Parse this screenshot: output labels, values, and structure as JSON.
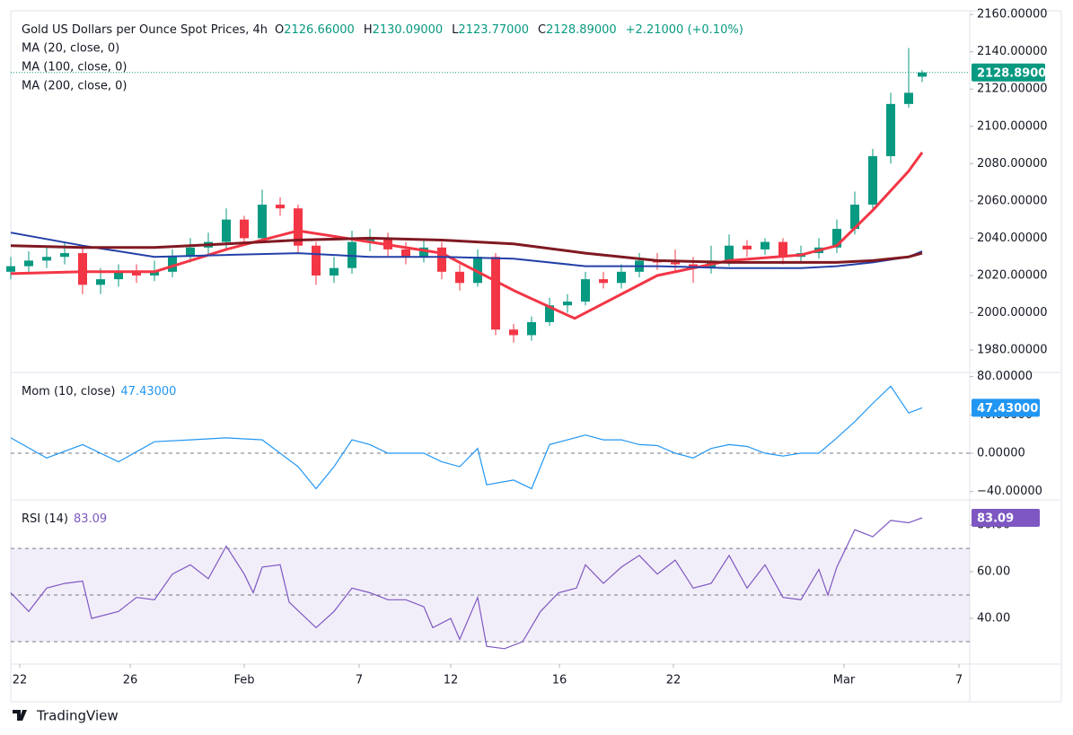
{
  "chart_data": [
    {
      "type": "candlestick",
      "title": "Gold US Dollars per Ounce Spot Prices, 4h",
      "ohlc_legend": [
        {
          "prefix": "O",
          "text": "2126.66000"
        },
        {
          "prefix": "H",
          "text": "2130.09000"
        },
        {
          "prefix": "L",
          "text": "2123.77000"
        },
        {
          "prefix": "C",
          "text": "2128.89000"
        }
      ],
      "change": "+2.21000 (+0.10%)",
      "last_price_label": "2128.89000",
      "up_color": "#089981",
      "down_color": "#f23645",
      "x": [
        0,
        2,
        4,
        6,
        8,
        10,
        12,
        14,
        16,
        18,
        20,
        22,
        24,
        26,
        28,
        30,
        32,
        34,
        36,
        38,
        40,
        42,
        44,
        46,
        48,
        50,
        52,
        54,
        56,
        58,
        60,
        62,
        64,
        66,
        68,
        70,
        72,
        74,
        76,
        78,
        80,
        82,
        84,
        86,
        88,
        90,
        92,
        94,
        96,
        98,
        100,
        101.5
      ],
      "open": [
        2022,
        2025,
        2028,
        2030,
        2032,
        2015,
        2018,
        2022,
        2020,
        2022,
        2030,
        2035,
        2038,
        2050,
        2040,
        2058,
        2056,
        2036,
        2020,
        2024,
        2038,
        2040,
        2034,
        2030,
        2035,
        2022,
        2016,
        2030,
        1991,
        1988,
        1995,
        2004,
        2006,
        2018,
        2016,
        2022,
        2028,
        2027,
        2026,
        2024,
        2028,
        2036,
        2034,
        2038,
        2030,
        2032,
        2035,
        2045,
        2058,
        2084,
        2112,
        2126.66
      ],
      "high": [
        2030,
        2033,
        2036,
        2038,
        2035,
        2024,
        2026,
        2026,
        2028,
        2034,
        2040,
        2043,
        2056,
        2052,
        2066,
        2062,
        2058,
        2038,
        2030,
        2044,
        2045,
        2043,
        2038,
        2040,
        2038,
        2026,
        2034,
        2032,
        1994,
        1998,
        2008,
        2010,
        2022,
        2022,
        2026,
        2032,
        2032,
        2034,
        2030,
        2036,
        2042,
        2039,
        2040,
        2040,
        2036,
        2040,
        2050,
        2065,
        2088,
        2118,
        2142,
        2130.09
      ],
      "low": [
        2018,
        2021,
        2024,
        2026,
        2010,
        2010,
        2014,
        2016,
        2017,
        2019,
        2027,
        2031,
        2034,
        2036,
        2038,
        2052,
        2032,
        2015,
        2016,
        2021,
        2033,
        2030,
        2026,
        2027,
        2018,
        2012,
        2014,
        1988,
        1984,
        1985,
        1993,
        2000,
        2004,
        2013,
        2013,
        2019,
        2023,
        2022,
        2016,
        2021,
        2025,
        2030,
        2031,
        2026,
        2027,
        2029,
        2032,
        2042,
        2055,
        2080,
        2110,
        2123.77
      ],
      "close": [
        2025,
        2028,
        2030,
        2032,
        2015,
        2018,
        2022,
        2020,
        2022,
        2030,
        2035,
        2038,
        2050,
        2040,
        2058,
        2056,
        2036,
        2020,
        2024,
        2038,
        2040,
        2034,
        2030,
        2035,
        2022,
        2016,
        2030,
        1991,
        1988,
        1995,
        2004,
        2006,
        2018,
        2016,
        2022,
        2028,
        2027,
        2026,
        2024,
        2028,
        2036,
        2034,
        2038,
        2030,
        2032,
        2035,
        2045,
        2058,
        2084,
        2112,
        2118,
        2128.89
      ],
      "ma_series": [
        {
          "name": "MA (20, close, 0)",
          "color": "#f23645",
          "width": 3,
          "x": [
            0,
            8,
            16,
            24,
            32,
            40,
            48,
            56,
            62.8,
            72,
            80,
            88,
            92,
            96,
            100,
            101.5
          ],
          "values": [
            2021,
            2022,
            2022,
            2034,
            2044,
            2038,
            2032,
            2012,
            1997,
            2020,
            2028,
            2031,
            2036,
            2055,
            2076,
            2086
          ]
        },
        {
          "name": "MA (100, close, 0)",
          "color": "#2340a8",
          "width": 2,
          "x": [
            0,
            8,
            16,
            24,
            32,
            40,
            48,
            56,
            64,
            72,
            80,
            88,
            92,
            96,
            100,
            101.5
          ],
          "values": [
            2043,
            2036,
            2030,
            2031,
            2032,
            2030,
            2030,
            2029,
            2025,
            2025,
            2024,
            2024,
            2025,
            2027,
            2030,
            2033
          ]
        },
        {
          "name": "MA (200, close, 0)",
          "color": "#801922",
          "width": 3,
          "x": [
            0,
            8,
            16,
            24,
            32,
            40,
            48,
            56,
            64,
            72,
            80,
            88,
            92,
            96,
            100,
            101.5
          ],
          "values": [
            2036,
            2035,
            2035,
            2037,
            2039,
            2040,
            2039,
            2037,
            2032,
            2028,
            2027,
            2027,
            2027,
            2028,
            2030,
            2032
          ]
        }
      ],
      "xlim": [
        0,
        106.8
      ],
      "ylim": [
        1968,
        2162
      ],
      "yticks": [
        {
          "value": 1980,
          "label": "1980.00000"
        },
        {
          "value": 2000,
          "label": "2000.00000"
        },
        {
          "value": 2020,
          "label": "2020.00000"
        },
        {
          "value": 2040,
          "label": "2040.00000"
        },
        {
          "value": 2060,
          "label": "2060.00000"
        },
        {
          "value": 2080,
          "label": "2080.00000"
        },
        {
          "value": 2100,
          "label": "2100.00000"
        },
        {
          "value": 2120,
          "label": "2120.00000"
        },
        {
          "value": 2140,
          "label": "2140.00000"
        },
        {
          "value": 2160,
          "label": "2160.00000"
        }
      ]
    },
    {
      "type": "line",
      "name": "Mom (10, close)",
      "value_label": "47.43000",
      "color": "#2196f3",
      "x": [
        0,
        4,
        8,
        12,
        16,
        20,
        24,
        28,
        32,
        34,
        36,
        38,
        40,
        42,
        44,
        46,
        48,
        50,
        52,
        53,
        56,
        58,
        60,
        62,
        64,
        66,
        68,
        70,
        72,
        74,
        76,
        78,
        80,
        82,
        84,
        86,
        88,
        90,
        92,
        94,
        96,
        98,
        100,
        101.5
      ],
      "values": [
        16,
        -5,
        9,
        -9,
        12,
        14,
        16,
        14,
        -14,
        -37,
        -14,
        14,
        9,
        0,
        0,
        0,
        -9,
        -14,
        5,
        -33,
        -28,
        -37,
        9,
        14,
        19,
        14,
        14,
        9,
        8,
        0,
        -5,
        5,
        9,
        7,
        0,
        -3,
        0,
        0,
        16,
        33,
        52,
        70,
        42,
        47.43
      ],
      "levels": [
        0
      ],
      "xlim": [
        0,
        106.8
      ],
      "ylim": [
        -48.7,
        84.3
      ],
      "yticks": [
        {
          "value": -40,
          "label": "−40.00000"
        },
        {
          "value": 0,
          "label": "0.00000"
        },
        {
          "value": 40,
          "label": "40.00000"
        },
        {
          "value": 80,
          "label": "80.00000"
        }
      ]
    },
    {
      "type": "line",
      "name": "RSI (14)",
      "value_label": "83.09",
      "color": "#7e57c2",
      "x": [
        0,
        2,
        4,
        6,
        8,
        9,
        12,
        14,
        16,
        18,
        20,
        22,
        24,
        26,
        27,
        28,
        30,
        31,
        34,
        36,
        38,
        40,
        42,
        44,
        46,
        47,
        49,
        50,
        52,
        53,
        55,
        57,
        59,
        61,
        63,
        64,
        66,
        68,
        70,
        72,
        74,
        76,
        78,
        80,
        82,
        84,
        86,
        88,
        90,
        91,
        92,
        94,
        96,
        98,
        100,
        101.5
      ],
      "values": [
        51,
        43,
        53,
        55,
        56,
        40,
        43,
        49,
        48,
        59,
        63,
        57,
        71,
        59,
        51,
        62,
        63,
        47,
        36,
        43,
        53,
        51,
        48,
        48,
        45,
        36,
        40,
        31,
        49,
        28,
        27,
        30,
        43,
        51,
        53,
        63,
        55,
        62,
        67,
        59,
        65,
        53,
        55,
        67,
        53,
        63,
        49,
        48,
        61,
        50,
        62,
        78,
        75,
        82,
        81,
        83.09
      ],
      "band": [
        30,
        70
      ],
      "levels": [
        30,
        50,
        70
      ],
      "xlim": [
        0,
        106.8
      ],
      "ylim": [
        20.4,
        90.8
      ],
      "yticks": [
        {
          "value": 40,
          "label": "40.00"
        },
        {
          "value": 60,
          "label": "60.00"
        },
        {
          "value": 80,
          "label": "80.00"
        }
      ],
      "xticks": [
        {
          "value": 1,
          "label": "22"
        },
        {
          "value": 13.3,
          "label": "26"
        },
        {
          "value": 26,
          "label": "Feb"
        },
        {
          "value": 38.8,
          "label": "7"
        },
        {
          "value": 49,
          "label": "12"
        },
        {
          "value": 61.1,
          "label": "16"
        },
        {
          "value": 73.8,
          "label": "22"
        },
        {
          "value": 92.8,
          "label": "Mar"
        },
        {
          "value": 105.6,
          "label": "7"
        }
      ]
    }
  ],
  "footer": {
    "brand": "TradingView"
  }
}
